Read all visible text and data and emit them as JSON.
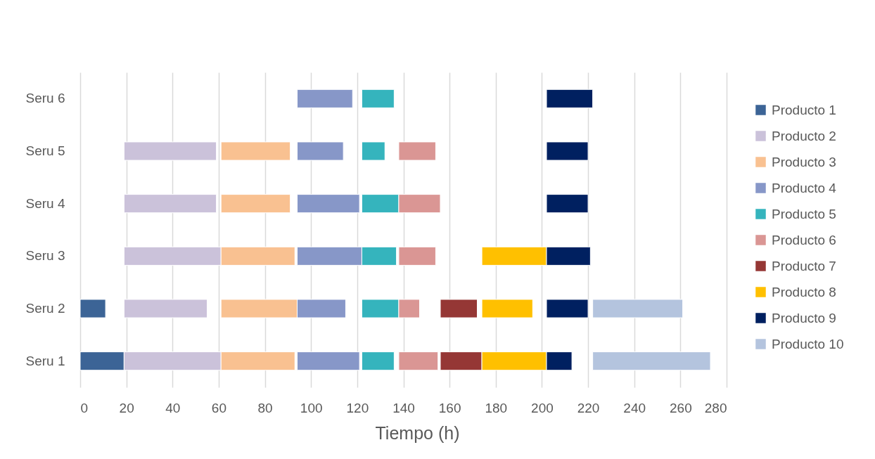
{
  "chart_data": {
    "type": "bar",
    "orientation": "horizontal",
    "xlabel": "Tiempo (h)",
    "categories": [
      "Seru 6",
      "Seru 5",
      "Seru 4",
      "Seru 3",
      "Seru 2",
      "Seru 1"
    ],
    "series": [
      {
        "name": "Producto 1",
        "color": "#3c6496",
        "base": [
          null,
          null,
          null,
          null,
          0,
          0
        ],
        "values": [
          null,
          null,
          null,
          null,
          11,
          19
        ]
      },
      {
        "name": "Producto 2",
        "color": "#cbc2da",
        "base": [
          null,
          19,
          19,
          19,
          19,
          19
        ],
        "values": [
          null,
          40,
          40,
          42,
          36,
          42
        ]
      },
      {
        "name": "Producto 3",
        "color": "#f9c191",
        "base": [
          null,
          61,
          61,
          61,
          61,
          61
        ],
        "values": [
          null,
          30,
          30,
          32,
          33,
          32
        ]
      },
      {
        "name": "Producto 4",
        "color": "#8797c8",
        "base": [
          94,
          94,
          94,
          94,
          94,
          94
        ],
        "values": [
          24,
          20,
          27,
          28,
          21,
          27
        ]
      },
      {
        "name": "Producto 5",
        "color": "#35b4bd",
        "base": [
          122,
          122,
          122,
          122,
          122,
          122
        ],
        "values": [
          14,
          10,
          16,
          15,
          16,
          14
        ]
      },
      {
        "name": "Producto 6",
        "color": "#da9694",
        "base": [
          null,
          138,
          138,
          138,
          138,
          138
        ],
        "values": [
          null,
          16,
          18,
          16,
          9,
          17
        ]
      },
      {
        "name": "Producto 7",
        "color": "#953735",
        "base": [
          null,
          null,
          null,
          null,
          156,
          156
        ],
        "values": [
          null,
          null,
          null,
          null,
          16,
          18
        ]
      },
      {
        "name": "Producto 8",
        "color": "#ffc000",
        "base": [
          null,
          null,
          null,
          174,
          174,
          174
        ],
        "values": [
          null,
          null,
          null,
          28,
          22,
          28
        ]
      },
      {
        "name": "Producto 9",
        "color": "#002060",
        "base": [
          202,
          202,
          202,
          202,
          202,
          202
        ],
        "values": [
          20,
          18,
          18,
          19,
          18,
          11
        ]
      },
      {
        "name": "Producto 10",
        "color": "#b4c4de",
        "base": [
          null,
          null,
          null,
          null,
          222,
          222
        ],
        "values": [
          null,
          null,
          null,
          null,
          39,
          51
        ]
      }
    ],
    "xlim": [
      0,
      280
    ],
    "xticks": [
      0,
      20,
      40,
      60,
      80,
      100,
      120,
      140,
      160,
      180,
      200,
      220,
      240,
      260,
      280
    ],
    "grid": "x",
    "legend": "right"
  }
}
